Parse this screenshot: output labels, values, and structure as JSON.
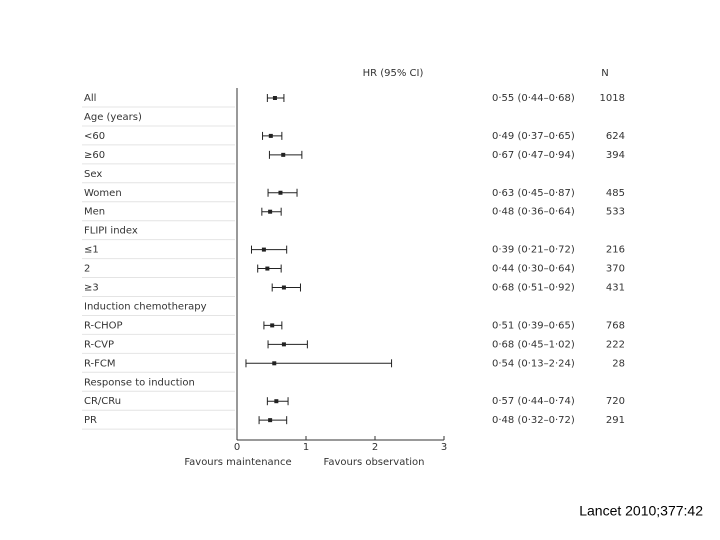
{
  "chart_data": {
    "type": "forest",
    "columns": {
      "hr": "HR (95% CI)",
      "n": "N"
    },
    "categories": [
      "All",
      "Age (years)",
      "<60",
      "≥60",
      "Sex",
      "Women",
      "Men",
      "FLIPI index",
      "≤1",
      "2",
      "≥3",
      "Induction chemotherapy",
      "R-CHOP",
      "R-CVP",
      "R-FCM",
      "Response to induction",
      "CR/CRu",
      "PR"
    ],
    "values": [
      0.55,
      null,
      0.49,
      0.67,
      null,
      0.63,
      0.48,
      null,
      0.39,
      0.44,
      0.68,
      null,
      0.51,
      0.68,
      0.54,
      null,
      0.57,
      0.48
    ],
    "lower": [
      0.44,
      null,
      0.37,
      0.47,
      null,
      0.45,
      0.36,
      null,
      0.21,
      0.3,
      0.51,
      null,
      0.39,
      0.45,
      0.13,
      null,
      0.44,
      0.32
    ],
    "upper": [
      0.68,
      null,
      0.65,
      0.94,
      null,
      0.87,
      0.64,
      null,
      0.72,
      0.64,
      0.92,
      null,
      0.65,
      1.02,
      2.24,
      null,
      0.74,
      0.72
    ],
    "value_labels": [
      "0·55 (0·44–0·68)",
      null,
      "0·49 (0·37–0·65)",
      "0·67 (0·47–0·94)",
      null,
      "0·63 (0·45–0·87)",
      "0·48 (0·36–0·64)",
      null,
      "0·39 (0·21–0·72)",
      "0·44 (0·30–0·64)",
      "0·68 (0·51–0·92)",
      null,
      "0·51 (0·39–0·65)",
      "0·68 (0·45–1·02)",
      "0·54 (0·13–2·24)",
      null,
      "0·57 (0·44–0·74)",
      "0·48 (0·32–0·72)"
    ],
    "n": [
      1018,
      null,
      624,
      394,
      null,
      485,
      533,
      null,
      216,
      370,
      431,
      null,
      768,
      222,
      28,
      null,
      720,
      291
    ],
    "xlim": [
      0,
      3
    ],
    "xticks": [
      0,
      1,
      2,
      3
    ],
    "x_labels": [
      "Favours maintenance",
      "Favours observation"
    ],
    "color": "#222222"
  },
  "source": "Lancet 2010;377:42"
}
